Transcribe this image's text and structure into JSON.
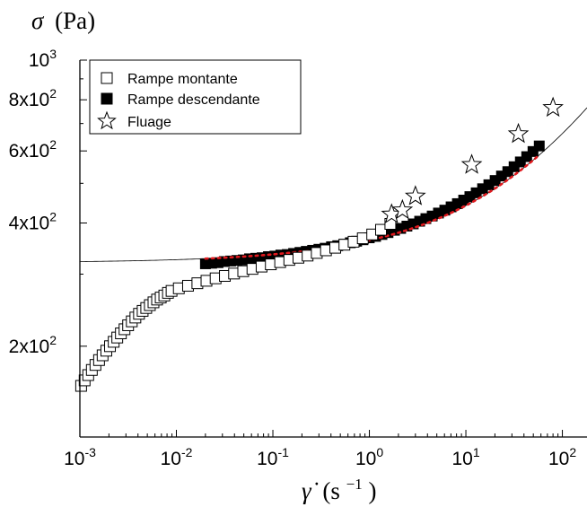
{
  "chart_data": {
    "type": "scatter",
    "x_scale": "log",
    "y_scale": "log",
    "xlim": [
      0.001,
      180
    ],
    "ylim": [
      120,
      1000
    ],
    "xticks": [
      {
        "value": 0.001,
        "base": "10",
        "exp": "-3"
      },
      {
        "value": 0.01,
        "base": "10",
        "exp": "-2"
      },
      {
        "value": 0.1,
        "base": "10",
        "exp": "-1"
      },
      {
        "value": 1,
        "base": "10",
        "exp": "0"
      },
      {
        "value": 10,
        "base": "10",
        "exp": "1"
      },
      {
        "value": 100,
        "base": "10",
        "exp": "2"
      }
    ],
    "yticks": [
      {
        "value": 1000,
        "base": "10",
        "exp": "3"
      },
      {
        "value": 800,
        "base": "8x10",
        "exp": "2"
      },
      {
        "value": 600,
        "base": "6x10",
        "exp": "2"
      },
      {
        "value": 400,
        "base": "4x10",
        "exp": "2"
      },
      {
        "value": 200,
        "base": "2x10",
        "exp": "2"
      }
    ],
    "xlabel": {
      "symbol": "γ̇",
      "unit": "(s",
      "exp": "−1",
      "close": ")"
    },
    "ylabel": {
      "symbol": "σ",
      "unit": "(Pa)"
    },
    "legend_position": "top-left",
    "series": [
      {
        "name": "Rampe montante",
        "marker": "open-square",
        "x": [
          0.00103,
          0.00112,
          0.00122,
          0.00133,
          0.00145,
          0.00158,
          0.00172,
          0.00188,
          0.00205,
          0.00224,
          0.00244,
          0.00266,
          0.0029,
          0.00316,
          0.00345,
          0.00376,
          0.0041,
          0.00447,
          0.00487,
          0.00531,
          0.00579,
          0.00631,
          0.00688,
          0.0075,
          0.00818,
          0.00891,
          0.0106,
          0.0132,
          0.0165,
          0.0205,
          0.0255,
          0.0318,
          0.0396,
          0.0493,
          0.0614,
          0.0764,
          0.0952,
          0.119,
          0.148,
          0.184,
          0.229,
          0.285,
          0.355,
          0.443,
          0.551,
          0.686,
          0.855,
          1.07,
          1.32,
          1.65
        ],
        "y": [
          160,
          165,
          170,
          175,
          180,
          185,
          190,
          195,
          200,
          205,
          210,
          215,
          220,
          225,
          230,
          235,
          240,
          244,
          248,
          252,
          256,
          260,
          263,
          266,
          270,
          273,
          277,
          281,
          285,
          289,
          293,
          297,
          301,
          305,
          309,
          313,
          317,
          321,
          325,
          329,
          333,
          338,
          343,
          348,
          354,
          360,
          367,
          375,
          385,
          398
        ]
      },
      {
        "name": "Rampe descendante",
        "marker": "filled-square",
        "x": [
          0.02,
          0.0232,
          0.027,
          0.0314,
          0.0365,
          0.0424,
          0.0493,
          0.0573,
          0.0666,
          0.0774,
          0.0899,
          0.105,
          0.121,
          0.141,
          0.164,
          0.191,
          0.222,
          0.258,
          0.3,
          0.348,
          0.405,
          0.47,
          0.547,
          0.635,
          0.738,
          0.858,
          0.997,
          1.16,
          1.35,
          1.56,
          1.82,
          2.11,
          2.45,
          2.85,
          3.32,
          3.85,
          4.48,
          5.2,
          6.05,
          7.03,
          8.17,
          9.49,
          11,
          12.8,
          14.9,
          17.3,
          20.1,
          23.4,
          27.2,
          31.6,
          36.7,
          42.7,
          49.6,
          57.6
        ],
        "y": [
          318,
          319,
          320,
          322,
          323,
          324,
          325,
          327,
          328,
          329,
          331,
          332,
          334,
          335,
          337,
          339,
          341,
          343,
          345,
          347,
          350,
          352,
          355,
          358,
          361,
          364,
          368,
          371,
          375,
          379,
          384,
          388,
          393,
          398,
          404,
          410,
          416,
          423,
          430,
          438,
          446,
          455,
          464,
          474,
          485,
          496,
          508,
          521,
          534,
          549,
          564,
          581,
          598,
          617
        ]
      },
      {
        "name": "Fluage",
        "marker": "open-star",
        "x": [
          1.7,
          2.2,
          3.0,
          11.5,
          35,
          80
        ],
        "y": [
          420,
          430,
          465,
          555,
          660,
          765
        ]
      }
    ],
    "fit_curves": [
      {
        "style": "thin-black-line",
        "model": "sigma = 320 + 43 * x^0.45",
        "x_range": [
          0.001,
          180
        ]
      },
      {
        "style": "red-dotted-line",
        "model": "sigma = 320 + 43 * x^0.45",
        "x_range": [
          0.02,
          57.6
        ]
      }
    ]
  }
}
